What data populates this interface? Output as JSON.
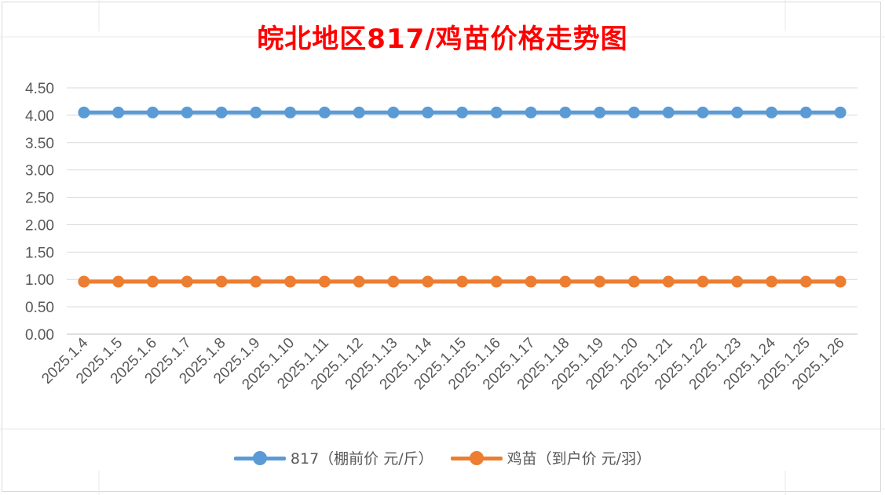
{
  "chart_data": {
    "type": "line",
    "title": "皖北地区817/鸡苗价格走势图",
    "title_color": "#ff0000",
    "categories": [
      "2025.1.4",
      "2025.1.5",
      "2025.1.6",
      "2025.1.7",
      "2025.1.8",
      "2025.1.9",
      "2025.1.10",
      "2025.1.11",
      "2025.1.12",
      "2025.1.13",
      "2025.1.14",
      "2025.1.15",
      "2025.1.16",
      "2025.1.17",
      "2025.1.18",
      "2025.1.19",
      "2025.1.20",
      "2025.1.21",
      "2025.1.22",
      "2025.1.23",
      "2025.1.24",
      "2025.1.25",
      "2025.1.26"
    ],
    "y_ticks": [
      "0.00",
      "0.50",
      "1.00",
      "1.50",
      "2.00",
      "2.50",
      "3.00",
      "3.50",
      "4.00",
      "4.50"
    ],
    "ylim": [
      0,
      4.5
    ],
    "grid": true,
    "legend_position": "bottom",
    "series": [
      {
        "name": "817（棚前价 元/斤）",
        "color": "#5b9bd5",
        "values": [
          4.05,
          4.05,
          4.05,
          4.05,
          4.05,
          4.05,
          4.05,
          4.05,
          4.05,
          4.05,
          4.05,
          4.05,
          4.05,
          4.05,
          4.05,
          4.05,
          4.05,
          4.05,
          4.05,
          4.05,
          4.05,
          4.05,
          4.05
        ]
      },
      {
        "name": "鸡苗（到户价 元/羽）",
        "color": "#ed7d31",
        "values": [
          0.96,
          0.96,
          0.96,
          0.96,
          0.96,
          0.96,
          0.96,
          0.96,
          0.96,
          0.96,
          0.96,
          0.96,
          0.96,
          0.96,
          0.96,
          0.96,
          0.96,
          0.96,
          0.96,
          0.96,
          0.96,
          0.96,
          0.96
        ]
      }
    ]
  }
}
